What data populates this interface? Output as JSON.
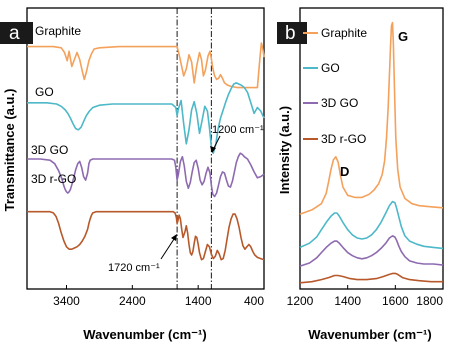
{
  "figure": {
    "background": "#ffffff"
  },
  "chart_data": [
    {
      "panel": "a",
      "type": "line",
      "xlabel": "Wavenumber (cm⁻¹)",
      "ylabel": "Transmittance (a.u.)",
      "xlim": [
        4000,
        400
      ],
      "x_reversed": true,
      "xticks": [
        3400,
        2400,
        1400,
        400
      ],
      "xtick_labels": [
        "3400",
        "2400",
        "1400",
        "400"
      ],
      "y_ticks_shown": false,
      "grid": false,
      "vlines": [
        1720,
        1200
      ],
      "annotations": [
        {
          "text": "1200 cm⁻¹",
          "points_to": [
            1200,
            12.2
          ]
        },
        {
          "text": "1720 cm⁻¹",
          "points_to": [
            1720,
            3.5
          ]
        }
      ],
      "series": [
        {
          "name": "Graphite",
          "color": "#f4a15b",
          "x": [
            4000,
            3600,
            3480,
            3430,
            3390,
            3360,
            3320,
            3280,
            3240,
            3200,
            3160,
            3130,
            3100,
            3060,
            3020,
            2980,
            2900,
            2600,
            2200,
            1900,
            1780,
            1720,
            1680,
            1620,
            1580,
            1540,
            1500,
            1460,
            1420,
            1380,
            1350,
            1320,
            1290,
            1250,
            1220,
            1200,
            1180,
            1150,
            1120,
            1090,
            1060,
            1030,
            1000,
            950,
            900,
            800,
            700,
            600,
            500,
            480,
            460,
            440,
            420,
            400
          ],
          "y": [
            20.7,
            20.7,
            20.6,
            20.2,
            19.5,
            20.3,
            19.0,
            19.6,
            20.2,
            19.6,
            18.6,
            17.9,
            18.5,
            19.5,
            20.1,
            20.5,
            20.6,
            20.7,
            20.7,
            20.7,
            20.7,
            20.7,
            19.8,
            18.2,
            18.8,
            20.0,
            19.4,
            17.6,
            19.1,
            20.2,
            19.6,
            18.2,
            18.7,
            19.9,
            20.3,
            19.7,
            18.9,
            18.2,
            17.9,
            18.0,
            18.3,
            18.0,
            17.6,
            17.4,
            17.3,
            17.2,
            17.2,
            17.2,
            17.2,
            18.5,
            19.8,
            21.0,
            20.6,
            19.8
          ]
        },
        {
          "name": "GO",
          "color": "#4db8c8",
          "x": [
            4000,
            3700,
            3550,
            3480,
            3420,
            3380,
            3340,
            3300,
            3260,
            3220,
            3180,
            3140,
            3100,
            3050,
            3000,
            2900,
            2700,
            2500,
            2300,
            2100,
            1900,
            1800,
            1740,
            1720,
            1700,
            1660,
            1620,
            1580,
            1540,
            1500,
            1460,
            1420,
            1380,
            1340,
            1300,
            1260,
            1230,
            1200,
            1170,
            1130,
            1100,
            1060,
            1020,
            980,
            940,
            900,
            860,
            820,
            780,
            740,
            700,
            650,
            600,
            550,
            500,
            450,
            400
          ],
          "y": [
            15.9,
            15.9,
            15.8,
            15.6,
            15.3,
            15.0,
            14.6,
            14.1,
            13.7,
            13.6,
            13.8,
            14.3,
            14.8,
            15.2,
            15.5,
            15.7,
            15.8,
            15.8,
            15.8,
            15.8,
            15.8,
            15.8,
            15.5,
            14.8,
            15.4,
            16.1,
            14.1,
            12.4,
            13.6,
            15.3,
            16.0,
            15.0,
            13.3,
            14.4,
            15.6,
            15.2,
            13.8,
            12.2,
            11.6,
            12.4,
            13.6,
            14.6,
            15.3,
            16.0,
            16.6,
            17.1,
            17.5,
            17.6,
            17.5,
            17.4,
            17.2,
            16.8,
            15.9,
            15.0,
            15.5,
            15.2,
            14.6
          ]
        },
        {
          "name": "3D GO",
          "color": "#8e6bb0",
          "x": [
            4000,
            3800,
            3650,
            3580,
            3520,
            3470,
            3440,
            3420,
            3400,
            3380,
            3360,
            3340,
            3320,
            3290,
            3260,
            3230,
            3200,
            3170,
            3140,
            3110,
            3080,
            3060,
            3040,
            3000,
            2950,
            2900,
            2700,
            2400,
            2100,
            1900,
            1800,
            1760,
            1740,
            1720,
            1700,
            1670,
            1640,
            1610,
            1580,
            1550,
            1520,
            1490,
            1460,
            1430,
            1400,
            1370,
            1340,
            1310,
            1280,
            1250,
            1220,
            1200,
            1180,
            1150,
            1120,
            1090,
            1060,
            1030,
            1000,
            970,
            940,
            910,
            880,
            850,
            820,
            790,
            760,
            730,
            700,
            650,
            600,
            550,
            500,
            450,
            400
          ],
          "y": [
            11.1,
            11.1,
            11.0,
            10.7,
            10.1,
            9.4,
            8.8,
            8.5,
            8.3,
            8.2,
            8.3,
            8.5,
            8.9,
            9.5,
            10.2,
            10.7,
            10.9,
            10.4,
            9.6,
            9.3,
            9.9,
            10.7,
            11.0,
            11.1,
            11.1,
            11.1,
            11.1,
            11.1,
            11.1,
            11.1,
            11.1,
            11.0,
            10.4,
            9.3,
            9.8,
            10.9,
            11.3,
            10.5,
            9.2,
            8.6,
            9.1,
            10.0,
            10.8,
            11.0,
            10.3,
            9.3,
            8.9,
            9.2,
            9.9,
            10.4,
            9.9,
            8.9,
            8.1,
            7.9,
            8.2,
            8.9,
            9.6,
            10.0,
            9.9,
            9.3,
            8.8,
            8.7,
            9.2,
            10.0,
            10.8,
            11.3,
            11.6,
            11.5,
            11.3,
            11.1,
            10.6,
            10.0,
            9.5,
            9.6,
            9.8
          ]
        },
        {
          "name": "3D r-GO",
          "color": "#b7592b",
          "x": [
            4000,
            3800,
            3650,
            3600,
            3560,
            3520,
            3480,
            3440,
            3400,
            3360,
            3320,
            3280,
            3240,
            3200,
            3160,
            3120,
            3080,
            3060,
            3040,
            3020,
            3000,
            2950,
            2850,
            2600,
            2300,
            2000,
            1850,
            1780,
            1750,
            1730,
            1720,
            1710,
            1690,
            1670,
            1650,
            1630,
            1600,
            1580,
            1560,
            1540,
            1520,
            1500,
            1480,
            1460,
            1440,
            1420,
            1400,
            1380,
            1350,
            1320,
            1290,
            1260,
            1230,
            1200,
            1170,
            1140,
            1110,
            1080,
            1050,
            1020,
            990,
            960,
            930,
            900,
            870,
            840,
            810,
            780,
            750,
            720,
            690,
            660,
            630,
            600,
            570,
            540,
            500,
            450,
            400
          ],
          "y": [
            6.6,
            6.6,
            6.6,
            6.5,
            6.2,
            5.6,
            4.8,
            4.1,
            3.6,
            3.4,
            3.4,
            3.5,
            3.6,
            3.8,
            4.1,
            4.5,
            5.1,
            5.6,
            6.0,
            6.3,
            6.5,
            6.6,
            6.6,
            6.6,
            6.6,
            6.6,
            6.6,
            6.6,
            6.5,
            6.1,
            5.6,
            5.8,
            6.3,
            6.0,
            5.1,
            4.4,
            4.9,
            5.4,
            4.8,
            3.8,
            3.1,
            2.9,
            3.2,
            3.9,
            4.5,
            4.4,
            3.8,
            3.1,
            2.5,
            2.6,
            3.2,
            3.8,
            3.6,
            3.0,
            2.6,
            2.8,
            3.3,
            3.0,
            2.5,
            2.6,
            3.3,
            4.3,
            5.3,
            6.0,
            6.4,
            6.4,
            6.0,
            5.3,
            4.4,
            3.7,
            3.4,
            3.6,
            3.8,
            3.6,
            3.2,
            2.9,
            2.7,
            2.6,
            2.5
          ]
        }
      ]
    },
    {
      "panel": "b",
      "type": "line",
      "xlabel": "Wavenumber (cm⁻¹)",
      "ylabel": "Intensity (a.u.)",
      "xlim": [
        1200,
        1800
      ],
      "xticks": [
        1200,
        1400,
        1600,
        1800
      ],
      "xtick_labels": [
        "1200",
        "1400",
        "1600",
        "1800"
      ],
      "y_ticks_shown": false,
      "grid": false,
      "legend_position": "top-left",
      "annotations": [
        {
          "text": "D",
          "at": [
            1350,
            12.6
          ]
        },
        {
          "text": "G",
          "at": [
            1590,
            25.6
          ]
        }
      ],
      "series": [
        {
          "name": "Graphite",
          "color": "#f4a15b",
          "x": [
            1200,
            1250,
            1290,
            1310,
            1320,
            1330,
            1340,
            1350,
            1360,
            1370,
            1380,
            1400,
            1430,
            1460,
            1490,
            1510,
            1530,
            1545,
            1555,
            1563,
            1570,
            1575,
            1580,
            1584,
            1588,
            1592,
            1596,
            1602,
            1610,
            1620,
            1640,
            1670,
            1700,
            1750,
            1800
          ],
          "y": [
            7.2,
            7.6,
            8.2,
            9.2,
            10.3,
            11.5,
            12.4,
            12.7,
            12.2,
            10.9,
            9.8,
            9.0,
            8.8,
            8.8,
            9.1,
            9.5,
            10.1,
            11.0,
            12.3,
            14.5,
            17.5,
            20.5,
            23.5,
            25.3,
            25.6,
            23.5,
            19.5,
            14.5,
            11.5,
            9.8,
            8.7,
            8.2,
            8.0,
            7.9,
            7.8
          ]
        },
        {
          "name": "GO",
          "color": "#4db8c8",
          "x": [
            1200,
            1240,
            1270,
            1290,
            1310,
            1330,
            1345,
            1355,
            1365,
            1380,
            1400,
            1420,
            1440,
            1460,
            1480,
            1500,
            1520,
            1540,
            1560,
            1575,
            1588,
            1598,
            1605,
            1615,
            1625,
            1640,
            1660,
            1690,
            1720,
            1760,
            1800
          ],
          "y": [
            4.0,
            4.4,
            5.0,
            5.7,
            6.4,
            7.0,
            7.3,
            7.3,
            7.0,
            6.4,
            5.7,
            5.2,
            4.9,
            4.8,
            4.9,
            5.2,
            5.7,
            6.4,
            7.3,
            8.0,
            8.4,
            8.3,
            7.8,
            6.9,
            6.0,
            5.1,
            4.6,
            4.3,
            4.1,
            4.0,
            3.9
          ]
        },
        {
          "name": "3D GO",
          "color": "#8e6bb0",
          "x": [
            1200,
            1240,
            1270,
            1290,
            1310,
            1330,
            1345,
            1355,
            1365,
            1380,
            1400,
            1420,
            1440,
            1460,
            1480,
            1500,
            1520,
            1540,
            1560,
            1575,
            1588,
            1598,
            1605,
            1615,
            1625,
            1640,
            1660,
            1690,
            1720,
            1760,
            1800
          ],
          "y": [
            2.2,
            2.5,
            3.0,
            3.5,
            4.0,
            4.4,
            4.6,
            4.6,
            4.4,
            4.0,
            3.5,
            3.2,
            3.0,
            2.9,
            3.0,
            3.2,
            3.5,
            3.9,
            4.4,
            4.9,
            5.1,
            5.0,
            4.7,
            4.1,
            3.6,
            3.1,
            2.7,
            2.5,
            2.4,
            2.4,
            2.3
          ]
        },
        {
          "name": "3D r-GO",
          "color": "#b7592b",
          "x": [
            1200,
            1250,
            1290,
            1320,
            1345,
            1360,
            1380,
            1410,
            1440,
            1480,
            1520,
            1550,
            1575,
            1590,
            1600,
            1610,
            1630,
            1660,
            1700,
            1750,
            1800
          ],
          "y": [
            0.6,
            0.7,
            0.9,
            1.1,
            1.3,
            1.3,
            1.2,
            1.0,
            0.9,
            0.9,
            1.0,
            1.2,
            1.4,
            1.5,
            1.5,
            1.4,
            1.1,
            0.9,
            0.8,
            0.7,
            0.7
          ]
        }
      ]
    }
  ],
  "panels": [
    {
      "label": "a",
      "xlabel": "Wavenumber (cm⁻¹)",
      "ylabel": "Transmittance (a.u.)",
      "series_labels": [
        "Graphite",
        "GO",
        "3D GO",
        "3D r-GO"
      ],
      "annotation_1200": "1200 cm⁻¹",
      "annotation_1720": "1720 cm⁻¹"
    },
    {
      "label": "b",
      "xlabel": "Wavenumber (cm⁻¹)",
      "ylabel": "Intensity (a.u.)",
      "legend": [
        "Graphite",
        "GO",
        "3D GO",
        "3D r-GO"
      ],
      "peak_d": "D",
      "peak_g": "G"
    }
  ]
}
